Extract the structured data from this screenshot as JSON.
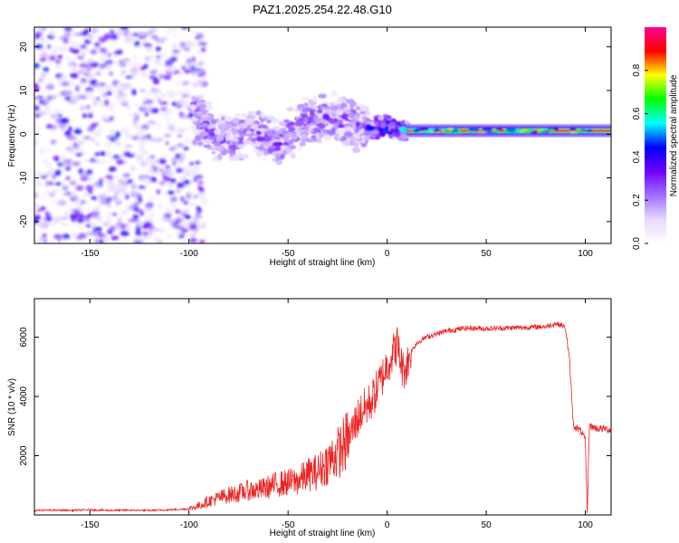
{
  "title": "PAZ1.2025.254.22.48.G10",
  "chart_data": [
    {
      "type": "heatmap",
      "panel": "spectrogram",
      "xlabel": "Height of straight line (km)",
      "ylabel": "Frequency (Hz)",
      "xlim": [
        -178,
        113
      ],
      "ylim": [
        -25,
        24.5
      ],
      "xticks": [
        -150,
        -100,
        -50,
        0,
        50,
        100
      ],
      "yticks": [
        -20,
        -10,
        0,
        10,
        20
      ],
      "xtick_labels": [
        "-150",
        "-100",
        "-50",
        "0",
        "50",
        "100"
      ],
      "ytick_labels": [
        "-20",
        "-10",
        "0",
        "10",
        "20"
      ],
      "colorbar": {
        "label": "Normalized spectral amplitude",
        "range": [
          0,
          1
        ],
        "ticks": [
          0,
          0.2,
          0.4,
          0.6,
          0.8
        ],
        "tick_labels": [
          "0.0",
          "0.2",
          "0.4",
          "0.6",
          "0.8"
        ],
        "colors": [
          "#ffffff",
          "#e6d8ff",
          "#a070ff",
          "#7000ff",
          "#0000ff",
          "#00ffff",
          "#00ff00",
          "#ffff00",
          "#ff0000",
          "#ff0090"
        ]
      },
      "features": [
        {
          "region": "noise",
          "x_range": [
            -178,
            -98
          ],
          "freq_range": [
            -25,
            24.5
          ],
          "amplitude": 0.1
        },
        {
          "region": "multipath",
          "x_range": [
            -98,
            -10
          ],
          "center_freq_trend": [
            [
              -98,
              5
            ],
            [
              -85,
              -1
            ],
            [
              -65,
              0
            ],
            [
              -55,
              -2
            ],
            [
              -45,
              2
            ],
            [
              -30,
              4
            ],
            [
              -15,
              2
            ],
            [
              -10,
              1
            ]
          ],
          "amplitude": 0.2
        },
        {
          "region": "transition",
          "x_range": [
            -10,
            10
          ],
          "center_freq_trend": [
            [
              -10,
              1
            ],
            [
              0,
              2
            ],
            [
              5,
              1
            ],
            [
              10,
              1
            ]
          ],
          "amplitude": 0.35
        },
        {
          "region": "stable tone",
          "x_range": [
            10,
            113
          ],
          "center_freq": 0.8,
          "amplitude": 0.95
        }
      ]
    },
    {
      "type": "line",
      "panel": "snr",
      "xlabel": "Height of straight line (km)",
      "ylabel": "SNR (10 * v/v)",
      "xlim": [
        -178,
        113
      ],
      "ylim": [
        0,
        7300
      ],
      "xticks": [
        -150,
        -100,
        -50,
        0,
        50,
        100
      ],
      "yticks": [
        2000,
        4000,
        6000
      ],
      "xtick_labels": [
        "-150",
        "-100",
        "-50",
        "0",
        "50",
        "100"
      ],
      "ytick_labels": [
        "2000",
        "4000",
        "6000"
      ],
      "series": [
        {
          "name": "SNR",
          "color": "#ee2222",
          "x": [
            -178,
            -170,
            -160,
            -150,
            -140,
            -130,
            -120,
            -110,
            -100,
            -95,
            -90,
            -85,
            -80,
            -75,
            -70,
            -65,
            -60,
            -55,
            -50,
            -45,
            -40,
            -35,
            -30,
            -25,
            -20,
            -15,
            -12,
            -10,
            -7,
            -5,
            -3,
            0,
            3,
            5,
            8,
            10,
            12,
            15,
            20,
            25,
            30,
            35,
            40,
            50,
            60,
            70,
            80,
            85,
            88,
            90,
            92,
            94,
            96,
            98,
            100,
            101,
            102,
            104,
            106,
            108,
            110,
            113
          ],
          "y": [
            150,
            160,
            150,
            170,
            150,
            160,
            150,
            170,
            200,
            300,
            450,
            550,
            650,
            700,
            800,
            800,
            900,
            1000,
            1050,
            1100,
            1300,
            1400,
            1700,
            2000,
            2400,
            3200,
            3500,
            3600,
            3900,
            4200,
            4500,
            5000,
            5400,
            5700,
            4800,
            5000,
            5500,
            5800,
            6000,
            6100,
            6200,
            6250,
            6300,
            6280,
            6300,
            6320,
            6350,
            6450,
            6400,
            6300,
            5200,
            3000,
            2900,
            2800,
            2500,
            0,
            3000,
            2950,
            2900,
            2900,
            2900,
            2850
          ]
        }
      ]
    }
  ]
}
